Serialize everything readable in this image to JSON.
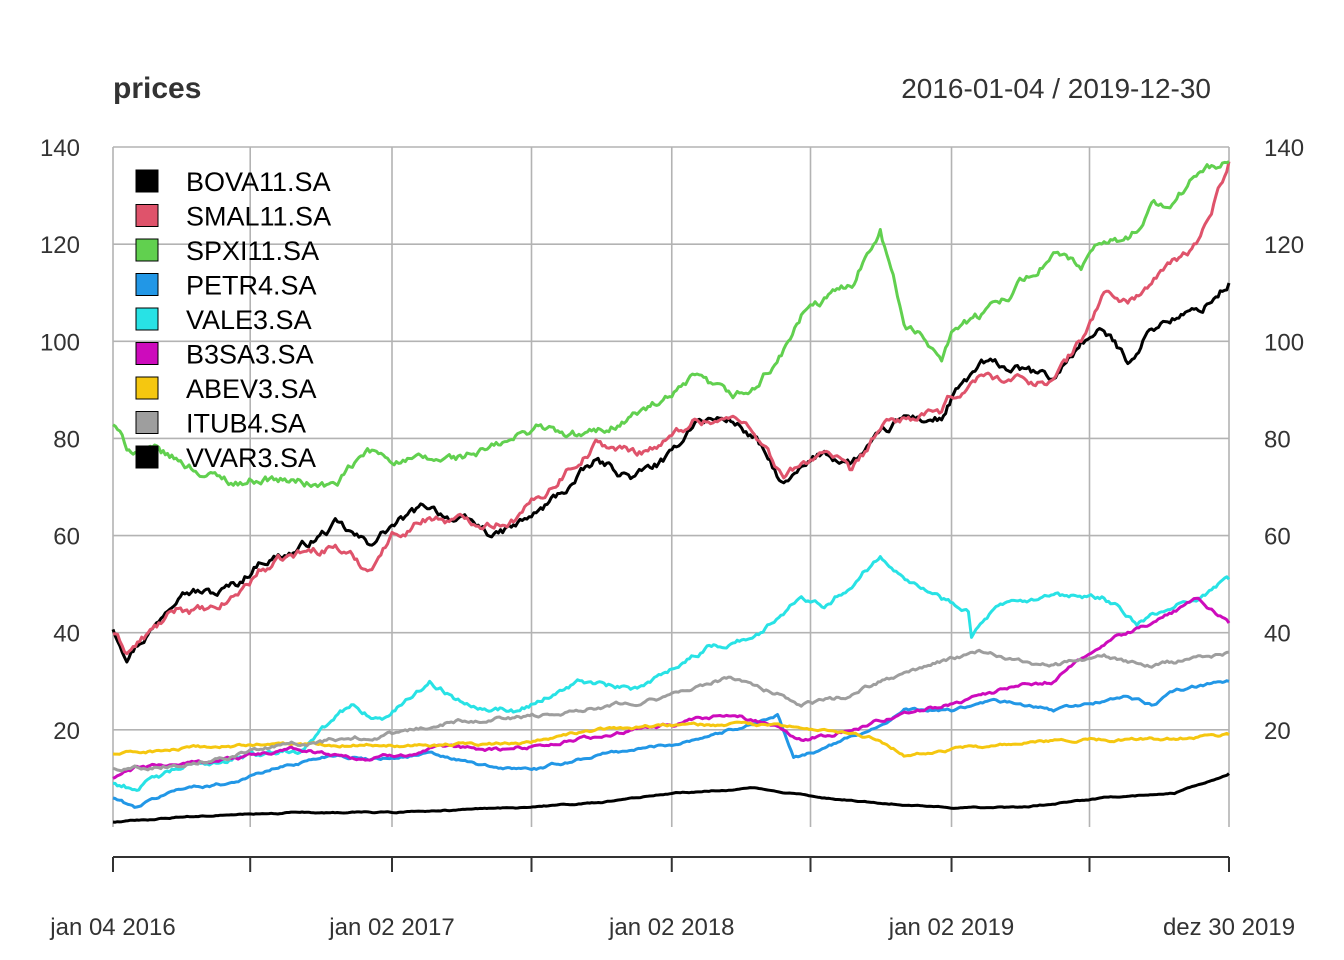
{
  "chart_data": {
    "type": "line",
    "title": "prices",
    "date_range_label": "2016-01-04 / 2019-12-30",
    "x_start": "2016-01-04",
    "x_end": "2019-12-30",
    "x_tick_labels": [
      {
        "date": "2016-01-04",
        "label": "jan 04 2016"
      },
      {
        "date": "2017-01-02",
        "label": "jan 02 2017"
      },
      {
        "date": "2018-01-02",
        "label": "jan 02 2018"
      },
      {
        "date": "2019-01-02",
        "label": "jan 02 2019"
      },
      {
        "date": "2019-12-30",
        "label": "dez 30 2019"
      }
    ],
    "x_minor_ticks": [
      "2016-07-01",
      "2017-07-03",
      "2018-07-02",
      "2019-07-01"
    ],
    "ylim": [
      0,
      140
    ],
    "y_ticks": [
      20,
      40,
      60,
      80,
      100,
      120,
      140
    ],
    "grid": true,
    "legend_position": "top-left",
    "series": [
      {
        "name": "BOVA11.SA",
        "color": "#000000",
        "points": [
          [
            "2016-01-04",
            41
          ],
          [
            "2016-01-22",
            36
          ],
          [
            "2016-03-01",
            42
          ],
          [
            "2016-04-01",
            50
          ],
          [
            "2016-05-16",
            48
          ],
          [
            "2016-06-15",
            50
          ],
          [
            "2016-07-15",
            55
          ],
          [
            "2016-09-01",
            57
          ],
          [
            "2016-10-20",
            62
          ],
          [
            "2016-12-01",
            58
          ],
          [
            "2017-01-02",
            62
          ],
          [
            "2017-02-20",
            66
          ],
          [
            "2017-04-01",
            63
          ],
          [
            "2017-05-18",
            60
          ],
          [
            "2017-06-15",
            62
          ],
          [
            "2017-07-15",
            65
          ],
          [
            "2017-08-20",
            70
          ],
          [
            "2017-09-25",
            75
          ],
          [
            "2017-11-15",
            72
          ],
          [
            "2018-01-02",
            76
          ],
          [
            "2018-02-01",
            84
          ],
          [
            "2018-03-20",
            84
          ],
          [
            "2018-04-20",
            80
          ],
          [
            "2018-05-28",
            70
          ],
          [
            "2018-06-20",
            73
          ],
          [
            "2018-07-20",
            77
          ],
          [
            "2018-08-25",
            75
          ],
          [
            "2018-10-01",
            80
          ],
          [
            "2018-11-01",
            84
          ],
          [
            "2018-12-20",
            84
          ],
          [
            "2019-01-02",
            88
          ],
          [
            "2019-02-10",
            95
          ],
          [
            "2019-04-01",
            94
          ],
          [
            "2019-05-15",
            92
          ],
          [
            "2019-06-20",
            100
          ],
          [
            "2019-07-20",
            102
          ],
          [
            "2019-08-20",
            96
          ],
          [
            "2019-09-20",
            103
          ],
          [
            "2019-10-20",
            105
          ],
          [
            "2019-11-20",
            106
          ],
          [
            "2019-12-30",
            112
          ]
        ]
      },
      {
        "name": "SMAL11.SA",
        "color": "#DF536B",
        "points": [
          [
            "2016-01-04",
            40
          ],
          [
            "2016-01-22",
            36
          ],
          [
            "2016-03-01",
            41
          ],
          [
            "2016-04-01",
            45
          ],
          [
            "2016-05-16",
            44
          ],
          [
            "2016-06-15",
            48
          ],
          [
            "2016-07-15",
            53
          ],
          [
            "2016-09-01",
            56
          ],
          [
            "2016-10-20",
            58
          ],
          [
            "2016-12-01",
            53
          ],
          [
            "2017-01-02",
            60
          ],
          [
            "2017-02-20",
            64
          ],
          [
            "2017-04-01",
            63
          ],
          [
            "2017-05-18",
            63
          ],
          [
            "2017-06-15",
            64
          ],
          [
            "2017-07-15",
            68
          ],
          [
            "2017-08-20",
            74
          ],
          [
            "2017-09-25",
            79
          ],
          [
            "2017-11-15",
            77
          ],
          [
            "2018-01-02",
            80
          ],
          [
            "2018-02-01",
            84
          ],
          [
            "2018-03-20",
            84
          ],
          [
            "2018-04-20",
            82
          ],
          [
            "2018-05-28",
            72
          ],
          [
            "2018-06-20",
            74
          ],
          [
            "2018-07-20",
            78
          ],
          [
            "2018-08-25",
            72
          ],
          [
            "2018-10-01",
            82
          ],
          [
            "2018-11-01",
            84
          ],
          [
            "2018-12-20",
            85
          ],
          [
            "2019-01-02",
            88
          ],
          [
            "2019-02-10",
            93
          ],
          [
            "2019-04-01",
            92
          ],
          [
            "2019-05-15",
            92
          ],
          [
            "2019-06-20",
            100
          ],
          [
            "2019-07-20",
            110
          ],
          [
            "2019-08-20",
            108
          ],
          [
            "2019-09-20",
            112
          ],
          [
            "2019-10-20",
            116
          ],
          [
            "2019-11-20",
            120
          ],
          [
            "2019-12-30",
            137
          ]
        ]
      },
      {
        "name": "SPXI11.SA",
        "color": "#61D04F",
        "points": [
          [
            "2016-01-04",
            83
          ],
          [
            "2016-01-22",
            78
          ],
          [
            "2016-03-01",
            77
          ],
          [
            "2016-04-01",
            75
          ],
          [
            "2016-05-16",
            72
          ],
          [
            "2016-06-15",
            71
          ],
          [
            "2016-07-15",
            72
          ],
          [
            "2016-09-01",
            71
          ],
          [
            "2016-10-20",
            70
          ],
          [
            "2016-12-01",
            77
          ],
          [
            "2017-01-02",
            76
          ],
          [
            "2017-02-20",
            75
          ],
          [
            "2017-04-01",
            76
          ],
          [
            "2017-05-18",
            78
          ],
          [
            "2017-06-15",
            80
          ],
          [
            "2017-07-15",
            83
          ],
          [
            "2017-08-20",
            80
          ],
          [
            "2017-09-25",
            81
          ],
          [
            "2017-11-15",
            85
          ],
          [
            "2018-01-02",
            88
          ],
          [
            "2018-02-01",
            92
          ],
          [
            "2018-03-20",
            88
          ],
          [
            "2018-04-20",
            90
          ],
          [
            "2018-05-28",
            98
          ],
          [
            "2018-06-20",
            105
          ],
          [
            "2018-07-20",
            108
          ],
          [
            "2018-08-25",
            112
          ],
          [
            "2018-10-01",
            124
          ],
          [
            "2018-11-01",
            104
          ],
          [
            "2018-12-20",
            97
          ],
          [
            "2019-01-02",
            103
          ],
          [
            "2019-02-10",
            105
          ],
          [
            "2019-04-01",
            112
          ],
          [
            "2019-05-15",
            118
          ],
          [
            "2019-06-20",
            115
          ],
          [
            "2019-07-20",
            120
          ],
          [
            "2019-08-20",
            121
          ],
          [
            "2019-09-20",
            128
          ],
          [
            "2019-10-20",
            128
          ],
          [
            "2019-11-20",
            135
          ],
          [
            "2019-12-30",
            137
          ]
        ]
      },
      {
        "name": "PETR4.SA",
        "color": "#2297E6",
        "points": [
          [
            "2016-01-04",
            6
          ],
          [
            "2016-02-01",
            4
          ],
          [
            "2016-04-01",
            8
          ],
          [
            "2016-06-01",
            9
          ],
          [
            "2016-08-01",
            12
          ],
          [
            "2016-10-20",
            15
          ],
          [
            "2016-12-01",
            14
          ],
          [
            "2017-02-20",
            15
          ],
          [
            "2017-05-18",
            12
          ],
          [
            "2017-07-15",
            12
          ],
          [
            "2017-10-01",
            15
          ],
          [
            "2018-01-02",
            17
          ],
          [
            "2018-03-20",
            20
          ],
          [
            "2018-05-20",
            23
          ],
          [
            "2018-06-10",
            14
          ],
          [
            "2018-08-01",
            17
          ],
          [
            "2018-10-01",
            21
          ],
          [
            "2018-11-01",
            24
          ],
          [
            "2019-01-02",
            24
          ],
          [
            "2019-03-01",
            26
          ],
          [
            "2019-05-15",
            24
          ],
          [
            "2019-07-20",
            26
          ],
          [
            "2019-08-20",
            27
          ],
          [
            "2019-09-20",
            25
          ],
          [
            "2019-10-20",
            28
          ],
          [
            "2019-12-30",
            30
          ]
        ]
      },
      {
        "name": "VALE3.SA",
        "color": "#28E2E5",
        "points": [
          [
            "2016-01-04",
            9
          ],
          [
            "2016-02-01",
            8
          ],
          [
            "2016-04-01",
            12
          ],
          [
            "2016-06-01",
            14
          ],
          [
            "2016-09-01",
            16
          ],
          [
            "2016-11-10",
            25
          ],
          [
            "2016-12-20",
            22
          ],
          [
            "2017-02-20",
            30
          ],
          [
            "2017-04-01",
            26
          ],
          [
            "2017-06-15",
            24
          ],
          [
            "2017-09-01",
            30
          ],
          [
            "2017-11-15",
            28
          ],
          [
            "2018-01-02",
            33
          ],
          [
            "2018-02-20",
            37
          ],
          [
            "2018-03-20",
            38
          ],
          [
            "2018-05-01",
            40
          ],
          [
            "2018-06-20",
            48
          ],
          [
            "2018-07-20",
            46
          ],
          [
            "2018-08-25",
            50
          ],
          [
            "2018-10-01",
            56
          ],
          [
            "2018-11-20",
            50
          ],
          [
            "2018-12-20",
            47
          ],
          [
            "2019-01-24",
            45
          ],
          [
            "2019-01-28",
            40
          ],
          [
            "2019-03-01",
            45
          ],
          [
            "2019-05-15",
            47
          ],
          [
            "2019-07-20",
            47
          ],
          [
            "2019-09-01",
            42
          ],
          [
            "2019-10-20",
            45
          ],
          [
            "2019-12-30",
            51
          ]
        ]
      },
      {
        "name": "B3SA3.SA",
        "color": "#CD0BBC",
        "points": [
          [
            "2016-01-04",
            10
          ],
          [
            "2016-02-01",
            12
          ],
          [
            "2016-06-01",
            14
          ],
          [
            "2016-09-01",
            16
          ],
          [
            "2016-12-01",
            14
          ],
          [
            "2017-03-01",
            16
          ],
          [
            "2017-06-01",
            16
          ],
          [
            "2017-09-01",
            18
          ],
          [
            "2018-01-02",
            21
          ],
          [
            "2018-03-20",
            23
          ],
          [
            "2018-05-20",
            21
          ],
          [
            "2018-06-20",
            18
          ],
          [
            "2018-08-25",
            20
          ],
          [
            "2018-10-01",
            22
          ],
          [
            "2018-12-20",
            25
          ],
          [
            "2019-03-01",
            28
          ],
          [
            "2019-05-15",
            30
          ],
          [
            "2019-07-20",
            38
          ],
          [
            "2019-09-20",
            42
          ],
          [
            "2019-11-20",
            47
          ],
          [
            "2019-12-30",
            42
          ]
        ]
      },
      {
        "name": "ABEV3.SA",
        "color": "#F5C710",
        "points": [
          [
            "2016-01-04",
            15
          ],
          [
            "2016-04-01",
            16
          ],
          [
            "2016-07-15",
            17
          ],
          [
            "2016-11-01",
            17
          ],
          [
            "2017-03-01",
            17
          ],
          [
            "2017-06-01",
            17
          ],
          [
            "2017-10-01",
            20
          ],
          [
            "2018-01-02",
            21
          ],
          [
            "2018-04-20",
            21
          ],
          [
            "2018-07-20",
            20
          ],
          [
            "2018-10-01",
            18
          ],
          [
            "2018-11-01",
            15
          ],
          [
            "2019-01-02",
            16
          ],
          [
            "2019-04-01",
            17
          ],
          [
            "2019-06-20",
            18
          ],
          [
            "2019-09-20",
            18
          ],
          [
            "2019-12-30",
            19
          ]
        ]
      },
      {
        "name": "ITUB4.SA",
        "color": "#9E9E9E",
        "points": [
          [
            "2016-01-04",
            12
          ],
          [
            "2016-04-01",
            13
          ],
          [
            "2016-07-15",
            16
          ],
          [
            "2016-10-20",
            18
          ],
          [
            "2017-01-02",
            19
          ],
          [
            "2017-04-01",
            22
          ],
          [
            "2017-07-15",
            23
          ],
          [
            "2017-10-01",
            25
          ],
          [
            "2018-01-02",
            27
          ],
          [
            "2018-03-20",
            31
          ],
          [
            "2018-05-28",
            27
          ],
          [
            "2018-06-20",
            25
          ],
          [
            "2018-08-25",
            27
          ],
          [
            "2018-10-01",
            30
          ],
          [
            "2018-12-20",
            34
          ],
          [
            "2019-02-10",
            36
          ],
          [
            "2019-05-15",
            33
          ],
          [
            "2019-07-20",
            35
          ],
          [
            "2019-09-20",
            33
          ],
          [
            "2019-12-30",
            36
          ]
        ]
      },
      {
        "name": "VVAR3.SA",
        "color": "#000000",
        "points": [
          [
            "2016-01-04",
            1
          ],
          [
            "2016-04-01",
            2
          ],
          [
            "2016-09-01",
            3
          ],
          [
            "2017-01-02",
            3
          ],
          [
            "2017-06-15",
            4
          ],
          [
            "2017-10-01",
            5
          ],
          [
            "2018-01-02",
            7
          ],
          [
            "2018-04-20",
            8
          ],
          [
            "2018-07-20",
            6
          ],
          [
            "2018-10-01",
            5
          ],
          [
            "2019-01-02",
            4
          ],
          [
            "2019-04-01",
            4
          ],
          [
            "2019-07-20",
            6
          ],
          [
            "2019-10-20",
            7
          ],
          [
            "2019-12-30",
            11
          ]
        ]
      }
    ]
  }
}
